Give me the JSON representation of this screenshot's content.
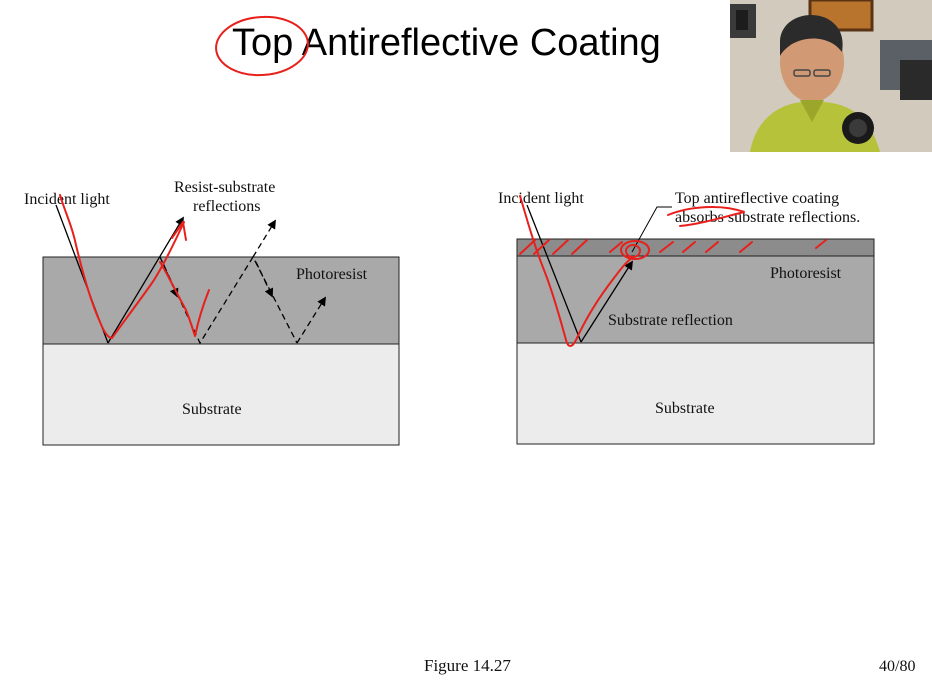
{
  "slide": {
    "title": "Top Antireflective Coating",
    "caption": "Figure 14.27",
    "page_number": "40/80"
  },
  "left_diagram": {
    "incident_label": "Incident light",
    "reflections_label_line1": "Resist-substrate",
    "reflections_label_line2": "reflections",
    "photoresist_label": "Photoresist",
    "substrate_label": "Substrate"
  },
  "right_diagram": {
    "incident_label": "Incident light",
    "coating_label_line1": "Top antireflective coating",
    "coating_label_line2": "absorbs substrate reflections.",
    "photoresist_label": "Photoresist",
    "reflection_label": "Substrate reflection",
    "substrate_label": "Substrate"
  },
  "colors": {
    "photoresist": "#a9a9a9",
    "substrate": "#ececec",
    "coating": "#8c8c8c",
    "annotation_ink": "#e8201c"
  },
  "icons": {
    "webcam": "presenter-webcam-overlay"
  }
}
